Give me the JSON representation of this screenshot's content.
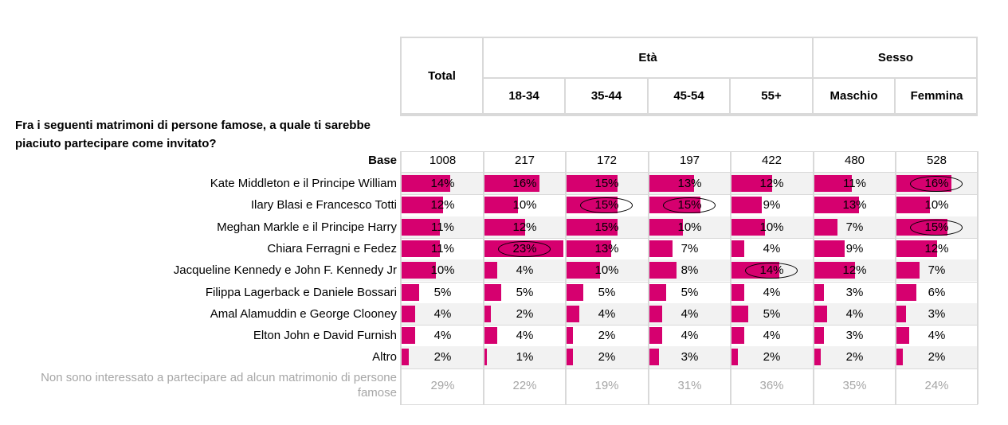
{
  "header": {
    "total": "Total",
    "groups": [
      {
        "label": "Età",
        "cols": [
          "18-34",
          "35-44",
          "45-54",
          "55+"
        ]
      },
      {
        "label": "Sesso",
        "cols": [
          "Maschio",
          "Femmina"
        ]
      }
    ]
  },
  "question": "Fra i seguenti matrimoni di persone famose, a quale ti sarebbe piaciuto partecipare come invitato?",
  "base": {
    "label": "Base",
    "values": [
      "1008",
      "217",
      "172",
      "197",
      "422",
      "480",
      "528"
    ]
  },
  "chart_data": {
    "type": "table",
    "columns": [
      "Total",
      "18-34",
      "35-44",
      "45-54",
      "55+",
      "Maschio",
      "Femmina"
    ],
    "rows": [
      {
        "label": "Kate Middleton e il Principe William",
        "values": [
          14,
          16,
          15,
          13,
          12,
          11,
          16
        ],
        "circled": [
          false,
          false,
          false,
          false,
          false,
          false,
          true
        ]
      },
      {
        "label": "Ilary Blasi e Francesco Totti",
        "values": [
          12,
          10,
          15,
          15,
          9,
          13,
          10
        ],
        "circled": [
          false,
          false,
          true,
          true,
          false,
          false,
          false
        ]
      },
      {
        "label": "Meghan Markle e il Principe Harry",
        "values": [
          11,
          12,
          15,
          10,
          10,
          7,
          15
        ],
        "circled": [
          false,
          false,
          false,
          false,
          false,
          false,
          true
        ]
      },
      {
        "label": "Chiara Ferragni e Fedez",
        "values": [
          11,
          23,
          13,
          7,
          4,
          9,
          12
        ],
        "circled": [
          false,
          true,
          false,
          false,
          false,
          false,
          false
        ]
      },
      {
        "label": "Jacqueline Kennedy e John F. Kennedy Jr",
        "values": [
          10,
          4,
          10,
          8,
          14,
          12,
          7
        ],
        "circled": [
          false,
          false,
          false,
          false,
          true,
          false,
          false
        ]
      },
      {
        "label": "Filippa Lagerback e Daniele Bossari",
        "values": [
          5,
          5,
          5,
          5,
          4,
          3,
          6
        ],
        "circled": [
          false,
          false,
          false,
          false,
          false,
          false,
          false
        ]
      },
      {
        "label": "Amal Alamuddin e George Clooney",
        "values": [
          4,
          2,
          4,
          4,
          5,
          4,
          3
        ],
        "circled": [
          false,
          false,
          false,
          false,
          false,
          false,
          false
        ]
      },
      {
        "label": "Elton John e David Furnish",
        "values": [
          4,
          4,
          2,
          4,
          4,
          3,
          4
        ],
        "circled": [
          false,
          false,
          false,
          false,
          false,
          false,
          false
        ]
      },
      {
        "label": "Altro",
        "values": [
          2,
          1,
          2,
          3,
          2,
          2,
          2
        ],
        "circled": [
          false,
          false,
          false,
          false,
          false,
          false,
          false
        ]
      }
    ],
    "last_row": {
      "label": "Non sono interessato a partecipare ad alcun matrimonio di persone famose",
      "values": [
        29,
        22,
        19,
        31,
        36,
        35,
        24
      ]
    },
    "bar_color": "#d6006f",
    "value_suffix": "%"
  }
}
